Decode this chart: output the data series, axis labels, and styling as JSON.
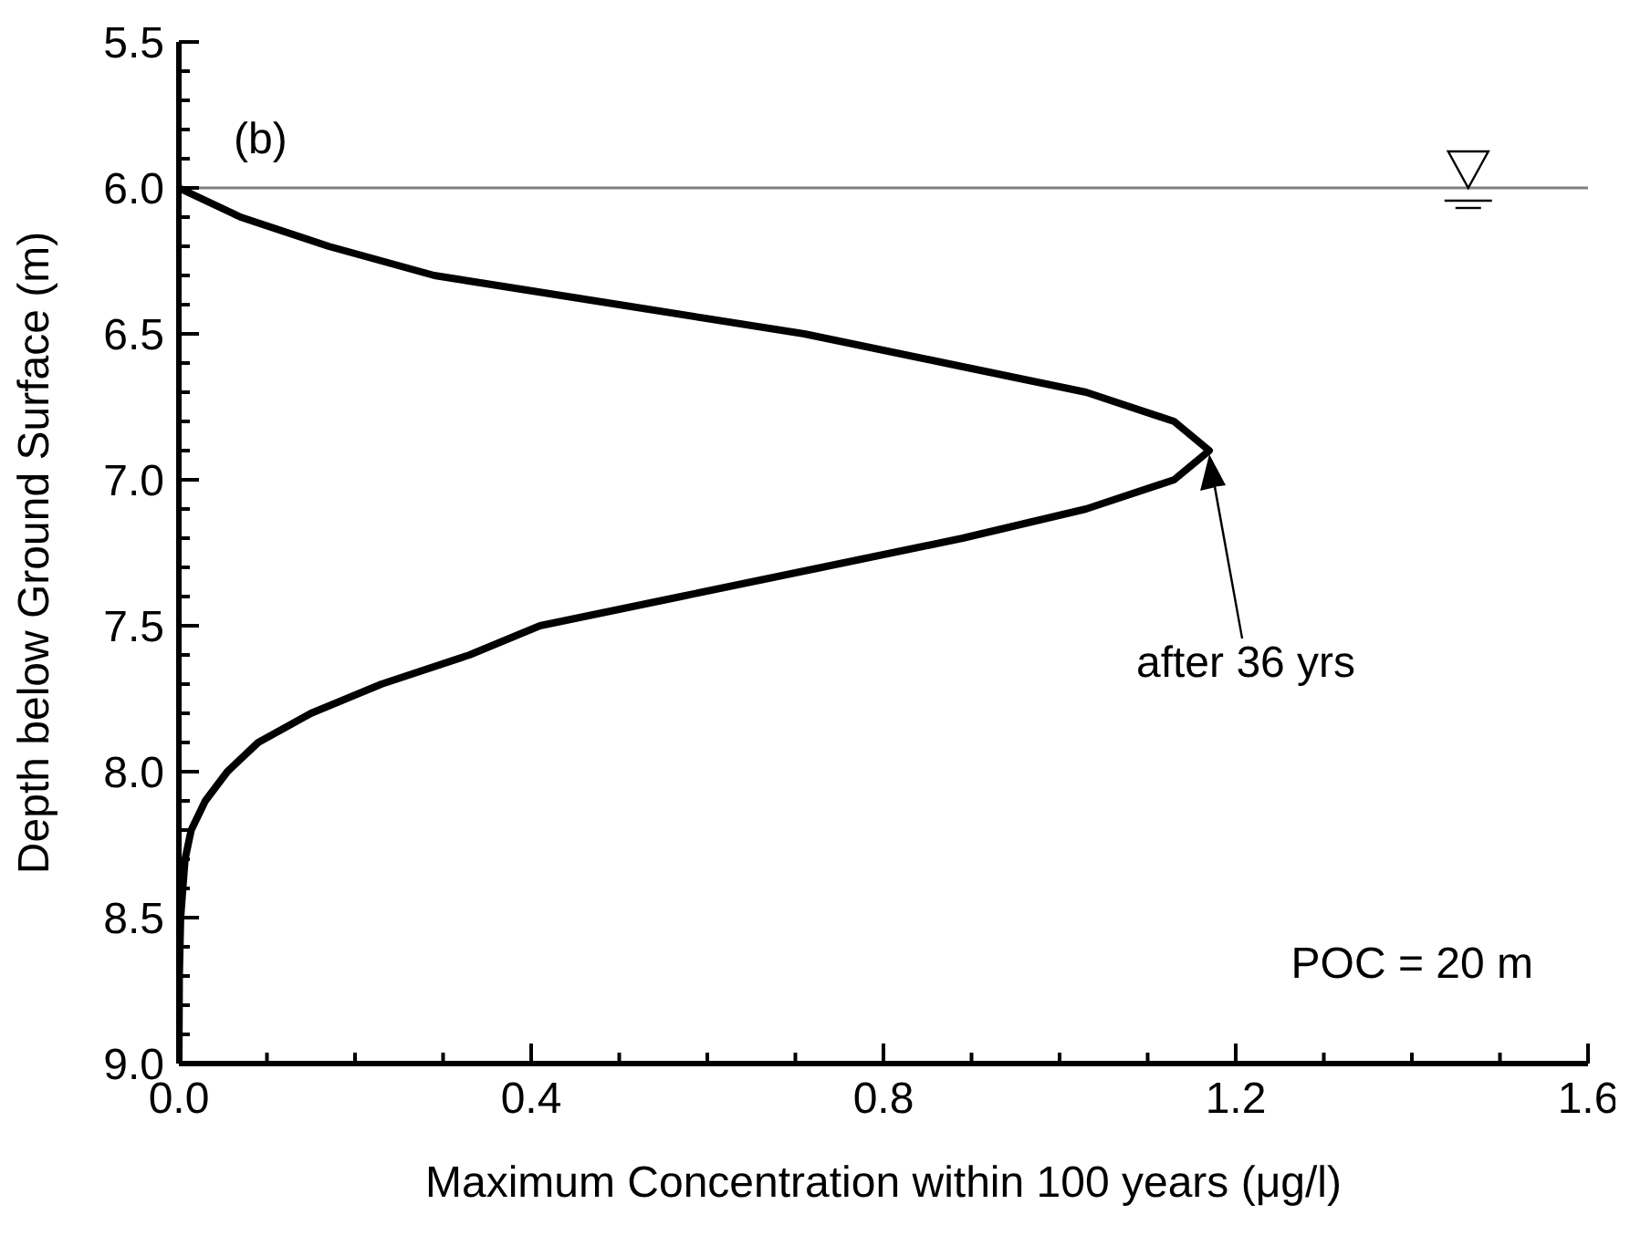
{
  "chart_data": {
    "type": "line",
    "xlabel": "Maximum Concentration within 100 years (μg/l)",
    "ylabel": "Depth below Ground Surface (m)",
    "x": [
      0,
      0.07,
      0.17,
      0.29,
      0.5,
      0.71,
      0.87,
      1.03,
      1.13,
      1.17,
      1.13,
      1.03,
      0.89,
      0.73,
      0.57,
      0.41,
      0.33,
      0.23,
      0.15,
      0.09,
      0.055,
      0.03,
      0.014,
      0.007,
      0.002,
      0.0005,
      0
    ],
    "series": [
      {
        "color": "#000000",
        "values": [
          6.0,
          6.1,
          6.2,
          6.3,
          6.4,
          6.5,
          6.6,
          6.7,
          6.8,
          6.9,
          7.0,
          7.1,
          7.2,
          7.3,
          7.4,
          7.5,
          7.6,
          7.7,
          7.8,
          7.9,
          8.0,
          8.1,
          8.2,
          8.3,
          8.5,
          8.7,
          9.0
        ]
      }
    ],
    "xlim": [
      0,
      1.6
    ],
    "ylim": [
      9.0,
      5.5
    ],
    "xticks": [
      {
        "value": 0,
        "label": "0.0"
      },
      {
        "value": 0.1,
        "label": null
      },
      {
        "value": 0.2,
        "label": null
      },
      {
        "value": 0.3,
        "label": null
      },
      {
        "value": 0.4,
        "label": "0.4"
      },
      {
        "value": 0.5,
        "label": null
      },
      {
        "value": 0.6,
        "label": null
      },
      {
        "value": 0.7,
        "label": null
      },
      {
        "value": 0.8,
        "label": "0.8"
      },
      {
        "value": 0.9,
        "label": null
      },
      {
        "value": 1.0,
        "label": null
      },
      {
        "value": 1.1,
        "label": null
      },
      {
        "value": 1.2,
        "label": "1.2"
      },
      {
        "value": 1.3,
        "label": null
      },
      {
        "value": 1.4,
        "label": null
      },
      {
        "value": 1.5,
        "label": null
      },
      {
        "value": 1.6,
        "label": "1.6"
      }
    ],
    "yticks": [
      {
        "value": 5.5,
        "label": "5.5"
      },
      {
        "value": 5.6,
        "label": null
      },
      {
        "value": 5.7,
        "label": null
      },
      {
        "value": 5.8,
        "label": null
      },
      {
        "value": 5.9,
        "label": null
      },
      {
        "value": 6.0,
        "label": "6.0"
      },
      {
        "value": 6.1,
        "label": null
      },
      {
        "value": 6.2,
        "label": null
      },
      {
        "value": 6.3,
        "label": null
      },
      {
        "value": 6.4,
        "label": null
      },
      {
        "value": 6.5,
        "label": "6.5"
      },
      {
        "value": 6.6,
        "label": null
      },
      {
        "value": 6.7,
        "label": null
      },
      {
        "value": 6.8,
        "label": null
      },
      {
        "value": 6.9,
        "label": null
      },
      {
        "value": 7.0,
        "label": "7.0"
      },
      {
        "value": 7.1,
        "label": null
      },
      {
        "value": 7.2,
        "label": null
      },
      {
        "value": 7.3,
        "label": null
      },
      {
        "value": 7.4,
        "label": null
      },
      {
        "value": 7.5,
        "label": "7.5"
      },
      {
        "value": 7.6,
        "label": null
      },
      {
        "value": 7.7,
        "label": null
      },
      {
        "value": 7.8,
        "label": null
      },
      {
        "value": 7.9,
        "label": null
      },
      {
        "value": 8.0,
        "label": "8.0"
      },
      {
        "value": 8.1,
        "label": null
      },
      {
        "value": 8.2,
        "label": null
      },
      {
        "value": 8.3,
        "label": null
      },
      {
        "value": 8.4,
        "label": null
      },
      {
        "value": 8.5,
        "label": "8.5"
      },
      {
        "value": 8.6,
        "label": null
      },
      {
        "value": 8.7,
        "label": null
      },
      {
        "value": 8.8,
        "label": null
      },
      {
        "value": 8.9,
        "label": null
      },
      {
        "value": 9.0,
        "label": "9.0"
      }
    ],
    "ref_lines": [
      {
        "axis": "y",
        "value": 6.0,
        "color": "#808080"
      }
    ],
    "annotations": [
      "(b)",
      "POC = 20 m",
      "after 36 yrs"
    ],
    "line_style": "solid"
  }
}
